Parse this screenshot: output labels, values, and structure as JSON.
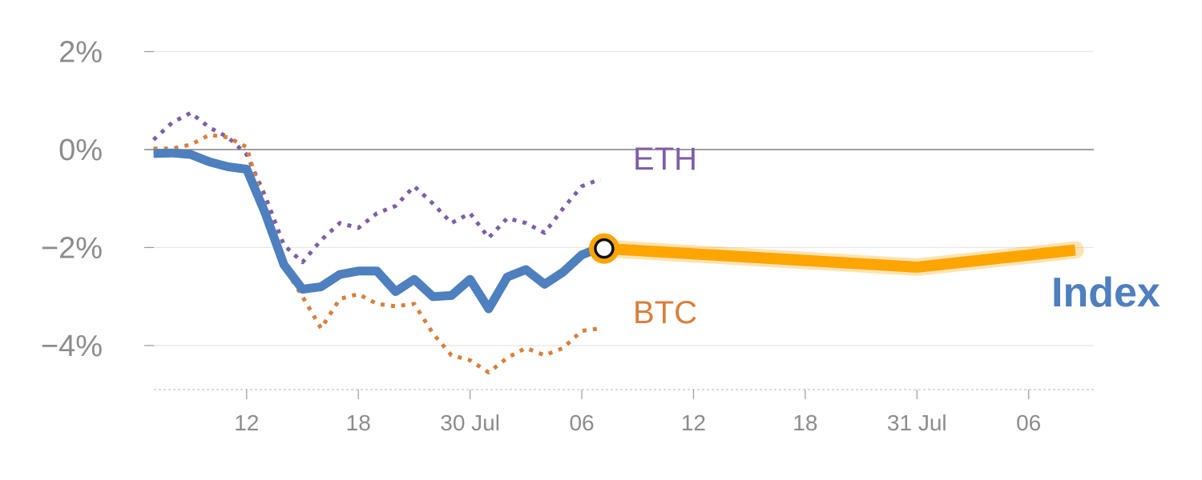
{
  "chart_data": {
    "type": "line",
    "ylim": [
      -4.9,
      2.4
    ],
    "y_ticks": [
      {
        "value": 2,
        "label": "2%"
      },
      {
        "value": 0,
        "label": "0%"
      },
      {
        "value": -2,
        "label": "−2%"
      },
      {
        "value": -4,
        "label": "−4%"
      }
    ],
    "x_ticks": [
      {
        "x": 6,
        "label": "12"
      },
      {
        "x": 12,
        "label": "18"
      },
      {
        "x": 18,
        "label": "30 Jul"
      },
      {
        "x": 24,
        "label": "06"
      },
      {
        "x": 30,
        "label": "12"
      },
      {
        "x": 36,
        "label": "18"
      },
      {
        "x": 42,
        "label": "31 Jul"
      },
      {
        "x": 48,
        "label": "06"
      }
    ],
    "xlim": [
      0.5,
      51.5
    ],
    "series": [
      {
        "name": "Index",
        "color": "#4e7fbf",
        "style": "solid",
        "x": [
          1,
          2,
          3,
          4,
          5,
          6,
          7,
          8,
          9,
          10,
          11,
          12,
          13,
          14,
          15,
          16,
          17,
          18,
          19,
          20,
          21,
          22,
          23,
          24,
          25
        ],
        "values": [
          -0.08,
          -0.07,
          -0.1,
          -0.25,
          -0.35,
          -0.4,
          -1.3,
          -2.35,
          -2.85,
          -2.8,
          -2.55,
          -2.48,
          -2.48,
          -2.9,
          -2.65,
          -3.0,
          -2.98,
          -2.65,
          -3.25,
          -2.6,
          -2.45,
          -2.75,
          -2.5,
          -2.15,
          -2.0
        ]
      },
      {
        "name": "ETH",
        "color": "#7f5ea8",
        "style": "dotted",
        "x": [
          1,
          2,
          3,
          4,
          5,
          6,
          7,
          8,
          9,
          10,
          11,
          12,
          13,
          14,
          15,
          16,
          17,
          18,
          19,
          20,
          21,
          22,
          23,
          24,
          25
        ],
        "values": [
          0.2,
          0.55,
          0.75,
          0.45,
          0.25,
          -0.1,
          -0.95,
          -1.95,
          -2.3,
          -1.85,
          -1.5,
          -1.6,
          -1.3,
          -1.15,
          -0.75,
          -1.1,
          -1.5,
          -1.3,
          -1.8,
          -1.4,
          -1.5,
          -1.7,
          -1.2,
          -0.75,
          -0.6
        ]
      },
      {
        "name": "BTC",
        "color": "#d97f3c",
        "style": "dotted",
        "x": [
          1,
          2,
          3,
          4,
          5,
          6,
          7,
          8,
          9,
          10,
          11,
          12,
          13,
          14,
          15,
          16,
          17,
          18,
          19,
          20,
          21,
          22,
          23,
          24,
          25
        ],
        "values": [
          0.02,
          0.02,
          0.1,
          0.3,
          0.25,
          0.05,
          -1.25,
          -2.4,
          -3.0,
          -3.65,
          -3.05,
          -2.95,
          -3.15,
          -3.2,
          -3.15,
          -3.75,
          -4.2,
          -4.3,
          -4.55,
          -4.25,
          -4.05,
          -4.2,
          -4.05,
          -3.7,
          -3.65
        ]
      },
      {
        "name": "Index projection",
        "color": "#ffa500",
        "style": "band",
        "x": [
          25.2,
          42,
          50.5
        ],
        "values": [
          -2.02,
          -2.4,
          -2.05
        ]
      }
    ],
    "labels": {
      "eth": "ETH",
      "btc": "BTC",
      "index": "Index"
    },
    "colors": {
      "eth": "#7f5ea8",
      "btc": "#d97f3c",
      "index": "#4e7fbf",
      "projection": "#ffa500",
      "axis_text": "#8c8c8c"
    },
    "grid": true
  }
}
